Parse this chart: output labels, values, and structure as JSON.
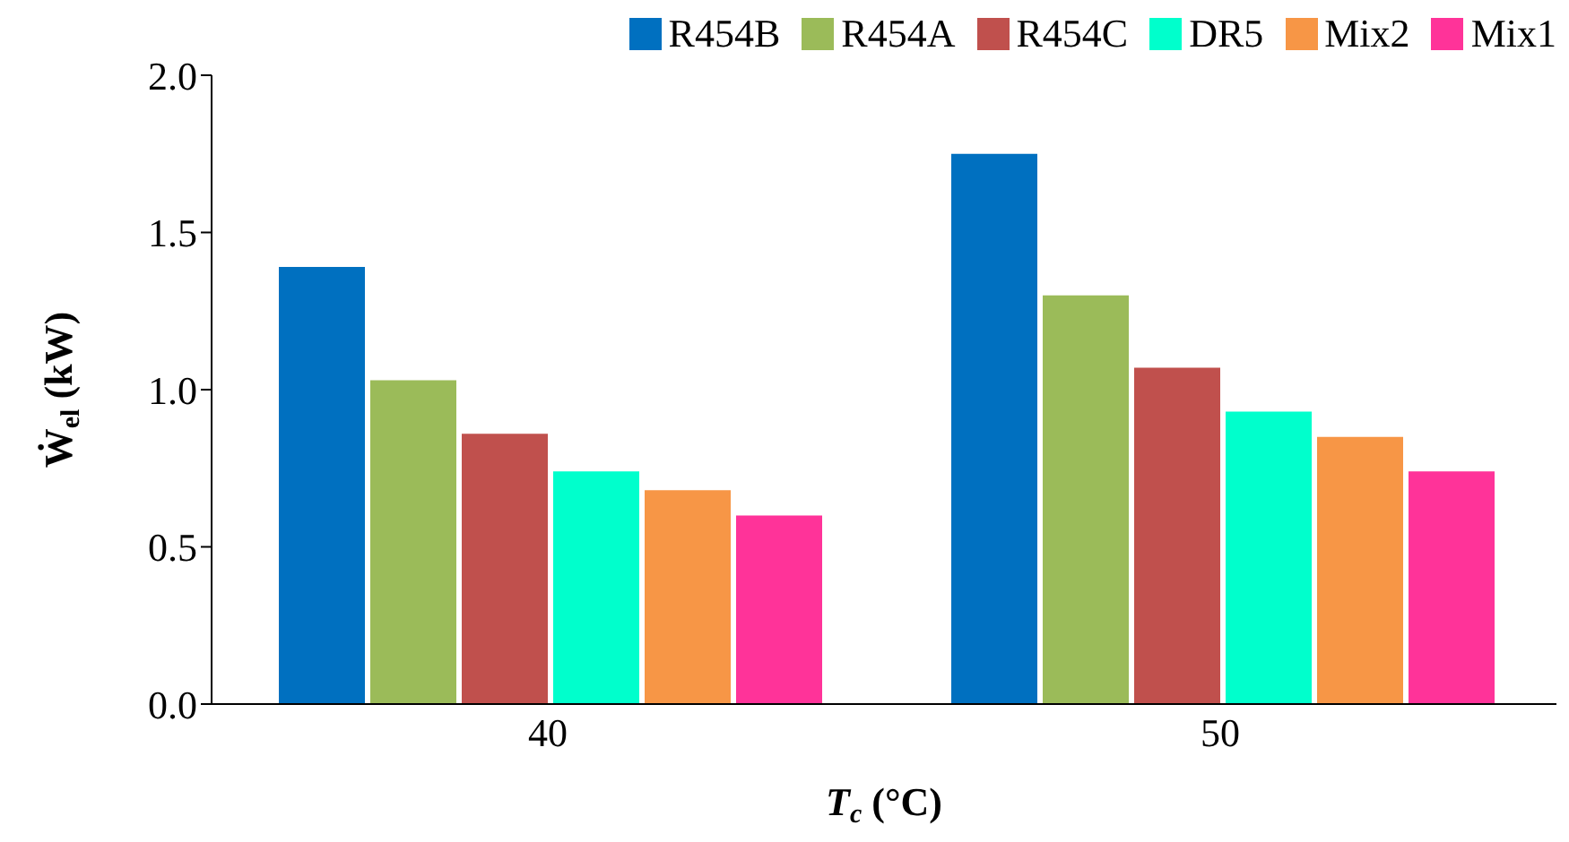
{
  "chart_data": {
    "type": "bar",
    "categories": [
      "40",
      "50"
    ],
    "series": [
      {
        "name": "R454B",
        "color": "#0070c0",
        "values": [
          1.39,
          1.75
        ]
      },
      {
        "name": "R454A",
        "color": "#9bbb59",
        "values": [
          1.03,
          1.3
        ]
      },
      {
        "name": "R454C",
        "color": "#c0504d",
        "values": [
          0.86,
          1.07
        ]
      },
      {
        "name": "DR5",
        "color": "#00ffcc",
        "values": [
          0.74,
          0.93
        ]
      },
      {
        "name": "Mix2",
        "color": "#f79646",
        "values": [
          0.68,
          0.85
        ]
      },
      {
        "name": "Mix1",
        "color": "#ff3399",
        "values": [
          0.6,
          0.74
        ]
      }
    ],
    "xlabel": "T$_{c}$ (°C)",
    "ylabel": "Ẇ$_{el}$ (kW)",
    "ylim": [
      0,
      2.0
    ],
    "yticks": [
      {
        "value": 0,
        "label": "0.0"
      },
      {
        "value": 0.5,
        "label": "0.5"
      },
      {
        "value": 1.0,
        "label": "1.0"
      },
      {
        "value": 1.5,
        "label": "1.5"
      },
      {
        "value": 2.0,
        "label": "2.0"
      }
    ],
    "grid": false,
    "legend": "top right"
  }
}
